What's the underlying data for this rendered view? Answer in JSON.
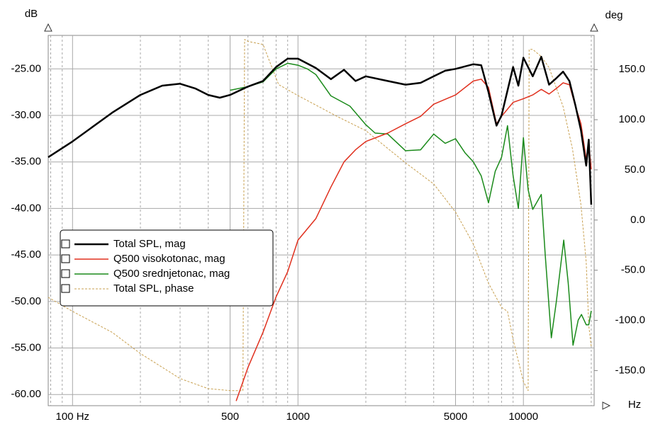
{
  "chart_data": {
    "type": "line",
    "y_unit": "dB",
    "y2_unit": "deg",
    "x_unit": "Hz",
    "xscale": "log",
    "xlim": [
      78,
      20600
    ],
    "ylim": [
      -61.2,
      -21.4
    ],
    "y2lim": [
      -185,
      184
    ],
    "grid": true,
    "xticks": [
      {
        "value": 100,
        "label": "100 Hz"
      },
      500,
      1000,
      5000,
      10000
    ],
    "xminorticks": [
      80,
      90,
      200,
      300,
      400,
      600,
      700,
      800,
      900,
      2000,
      3000,
      4000,
      6000,
      7000,
      8000,
      9000,
      20000
    ],
    "yticks": [
      {
        "value": -25,
        "label": "-25.00"
      },
      {
        "value": -30,
        "label": "-30.00"
      },
      {
        "value": -35,
        "label": "-35.00"
      },
      {
        "value": -40,
        "label": "-40.00"
      },
      {
        "value": -45,
        "label": "-45.00"
      },
      {
        "value": -50,
        "label": "-50.00"
      },
      {
        "value": -55,
        "label": "-55.00"
      },
      {
        "value": -60,
        "label": "-60.00"
      }
    ],
    "y2ticks": [
      {
        "value": 150,
        "label": "150.0"
      },
      {
        "value": 100,
        "label": "100.0"
      },
      {
        "value": 50,
        "label": "50.0"
      },
      {
        "value": 0,
        "label": "0.0"
      },
      {
        "value": -50,
        "label": "-50.0"
      },
      {
        "value": -100,
        "label": "-100.0"
      },
      {
        "value": -150,
        "label": "-150.0"
      }
    ],
    "legend": "left",
    "series": [
      {
        "name": "Total SPL, mag",
        "color": "#000000",
        "width": 2.5,
        "dash": false,
        "x": [
          78,
          100,
          150,
          200,
          250,
          300,
          350,
          400,
          450,
          500,
          600,
          700,
          800,
          900,
          1000,
          1200,
          1400,
          1600,
          1800,
          2000,
          2500,
          3000,
          3500,
          4000,
          4500,
          5000,
          6000,
          6500,
          7000,
          7600,
          8000,
          9000,
          9500,
          10000,
          11000,
          12000,
          13000,
          14000,
          15000,
          16000,
          17000,
          18000,
          19000,
          19500,
          20000
        ],
        "values": [
          -34.5,
          -32.8,
          -29.7,
          -27.8,
          -26.8,
          -26.6,
          -27.1,
          -27.8,
          -28.1,
          -27.8,
          -26.9,
          -26.3,
          -24.8,
          -23.9,
          -23.9,
          -24.9,
          -26.1,
          -25.1,
          -26.3,
          -25.8,
          -26.3,
          -26.7,
          -26.5,
          -25.8,
          -25.2,
          -25.0,
          -24.5,
          -24.6,
          -27.5,
          -31.1,
          -30.0,
          -24.8,
          -26.8,
          -23.8,
          -25.8,
          -23.7,
          -26.7,
          -26.0,
          -25.3,
          -26.3,
          -28.9,
          -31.6,
          -35.4,
          -32.6,
          -39.6
        ]
      },
      {
        "name": "Q500 visokotonac, mag",
        "color": "#e0301e",
        "width": 1.5,
        "dash": false,
        "x": [
          532,
          600,
          700,
          800,
          900,
          1000,
          1200,
          1400,
          1600,
          1800,
          2000,
          2500,
          3000,
          3500,
          4000,
          5000,
          6000,
          6500,
          7000,
          7600,
          8000,
          9000,
          10000,
          11000,
          12000,
          13000,
          14000,
          15000,
          16000,
          17000,
          18000,
          19000,
          19500,
          20000
        ],
        "values": [
          -60.7,
          -57.1,
          -53.3,
          -49.5,
          -46.8,
          -43.4,
          -41.1,
          -37.7,
          -35.0,
          -33.7,
          -32.8,
          -31.9,
          -30.9,
          -30.1,
          -28.8,
          -27.8,
          -26.3,
          -26.1,
          -27.0,
          -30.9,
          -30.1,
          -28.6,
          -28.2,
          -27.8,
          -27.2,
          -27.7,
          -27.1,
          -26.5,
          -26.7,
          -29.0,
          -30.9,
          -34.7,
          -33.1,
          -35.8
        ]
      },
      {
        "name": "Q500 srednjetonac, mag",
        "color": "#1a8a1a",
        "width": 1.5,
        "dash": false,
        "x": [
          500,
          600,
          700,
          800,
          900,
          1000,
          1100,
          1200,
          1400,
          1700,
          2000,
          2200,
          2500,
          3000,
          3500,
          4000,
          4500,
          5000,
          5500,
          6000,
          6500,
          7000,
          7500,
          8000,
          8500,
          9000,
          9500,
          10000,
          10500,
          11000,
          12000,
          12500,
          13300,
          14000,
          15100,
          15800,
          16600,
          17500,
          18100,
          19000,
          19500,
          20000
        ],
        "values": [
          -27.3,
          -26.9,
          -26.4,
          -25.0,
          -24.4,
          -24.6,
          -25.0,
          -25.6,
          -27.9,
          -29.0,
          -31.0,
          -31.9,
          -32.0,
          -33.8,
          -33.7,
          -32.0,
          -33.0,
          -32.5,
          -34.0,
          -35.0,
          -36.5,
          -39.4,
          -36.0,
          -34.5,
          -31.1,
          -36.5,
          -40.0,
          -32.4,
          -38.0,
          -40.1,
          -38.5,
          -45.0,
          -53.9,
          -50.0,
          -43.4,
          -48.0,
          -54.7,
          -52.0,
          -51.4,
          -52.5,
          -52.5,
          -51.0
        ]
      },
      {
        "name": "Total SPL, phase",
        "color": "#c8a050",
        "width": 1,
        "dash": true,
        "axis": "y2",
        "x": [
          78,
          100,
          150,
          200,
          300,
          400,
          500,
          570,
          580,
          600,
          700,
          820,
          1000,
          1500,
          2000,
          3000,
          4000,
          5000,
          6000,
          7000,
          8000,
          8500,
          9000,
          10000,
          10500,
          10600,
          11000,
          12000,
          13000,
          15000,
          16500,
          18000,
          19000,
          19500,
          20000
        ],
        "values": [
          -77,
          -91,
          -112,
          -133,
          -158,
          -168,
          -170,
          -170,
          180,
          178,
          175,
          135,
          124,
          103,
          89,
          57,
          36,
          8,
          -24,
          -63,
          -87,
          -91,
          -119,
          -161,
          -170,
          170,
          170,
          163,
          152,
          113,
          71,
          15,
          -42,
          -105,
          -126
        ]
      }
    ]
  }
}
